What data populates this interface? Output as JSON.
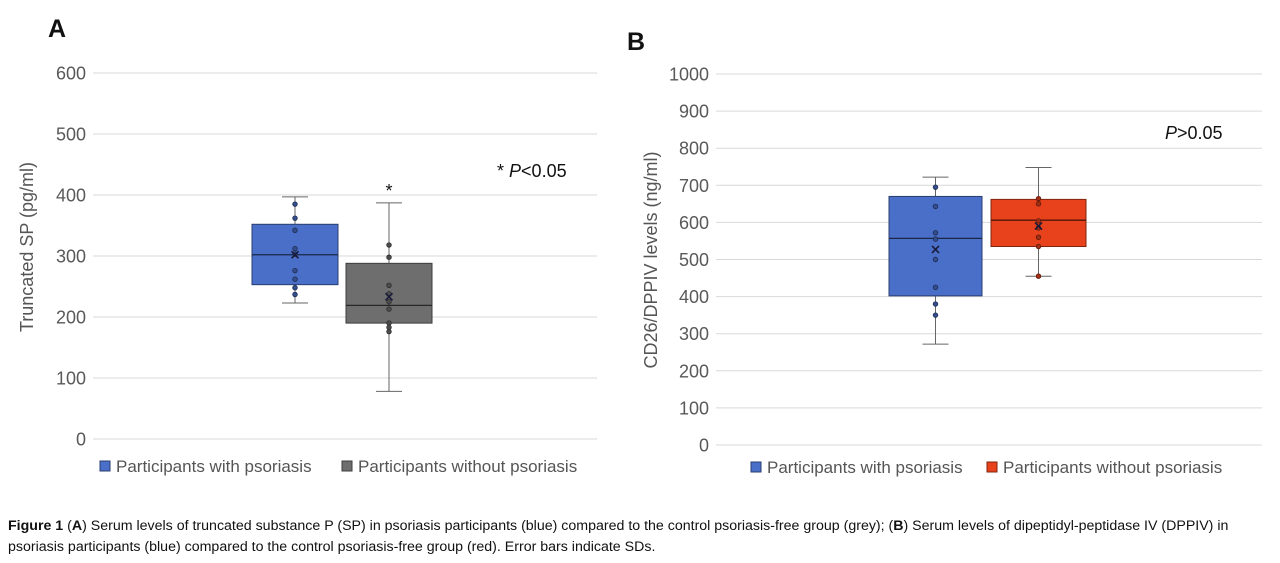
{
  "panels": [
    {
      "label": "A",
      "ylabel": "Truncated SP (pg/ml)",
      "annotation_star": "*",
      "annotation_p": "P",
      "annotation_rest": "<0.05",
      "color_psoriasis": "#4a6fc9",
      "color_control": "#6e6e6e"
    },
    {
      "label": "B",
      "ylabel": "CD26/DPPIV levels (ng/ml)",
      "annotation_star": "",
      "annotation_p": "P",
      "annotation_rest": ">0.05",
      "color_psoriasis": "#4a6fc9",
      "color_control": "#e8421c"
    }
  ],
  "chart_data": [
    {
      "type": "box",
      "ylabel": "Truncated SP (pg/ml)",
      "ylim": [
        0,
        600
      ],
      "yticks": [
        0,
        100,
        200,
        300,
        400,
        500,
        600
      ],
      "grid": true,
      "legend_position": "bottom",
      "series": [
        {
          "name": "Participants with psoriasis",
          "color": "#4a6fc9",
          "min": 223,
          "q1": 253,
          "median": 302,
          "q3": 352,
          "max": 397,
          "mean": 302,
          "points": [
            385,
            362,
            342,
            312,
            303,
            276,
            262,
            248,
            237
          ],
          "significance": ""
        },
        {
          "name": "Participants without psoriasis",
          "color": "#6e6e6e",
          "min": 78,
          "q1": 190,
          "median": 219,
          "q3": 288,
          "max": 387,
          "mean": 233,
          "points": [
            318,
            298,
            252,
            238,
            225,
            213,
            190,
            183,
            176
          ],
          "significance": "*"
        }
      ]
    },
    {
      "type": "box",
      "ylabel": "CD26/DPPIV levels (ng/ml)",
      "ylim": [
        0,
        1000
      ],
      "yticks": [
        0,
        100,
        200,
        300,
        400,
        500,
        600,
        700,
        800,
        900,
        1000
      ],
      "grid": true,
      "legend_position": "bottom",
      "series": [
        {
          "name": "Participants with psoriasis",
          "color": "#4a6fc9",
          "min": 272,
          "q1": 402,
          "median": 557,
          "q3": 670,
          "max": 722,
          "mean": 527,
          "points": [
            695,
            643,
            572,
            555,
            500,
            425,
            380,
            350
          ],
          "significance": ""
        },
        {
          "name": "Participants without psoriasis",
          "color": "#e8421c",
          "min": 455,
          "q1": 535,
          "median": 606,
          "q3": 662,
          "max": 748,
          "mean": 590,
          "points": [
            664,
            650,
            604,
            585,
            560,
            535,
            455
          ],
          "significance": ""
        }
      ]
    }
  ],
  "caption": {
    "fig_label": "Figure 1",
    "s1": " (",
    "a": "A",
    "s2": ") Serum levels of truncated substance P (SP) in psoriasis participants (blue) compared to the control psoriasis-free group (grey); (",
    "b": "B",
    "s3": ") Serum levels of dipeptidyl-peptidase IV (DPPIV) in psoriasis participants (blue) compared to the control psoriasis-free group (red). Error bars indicate SDs."
  }
}
